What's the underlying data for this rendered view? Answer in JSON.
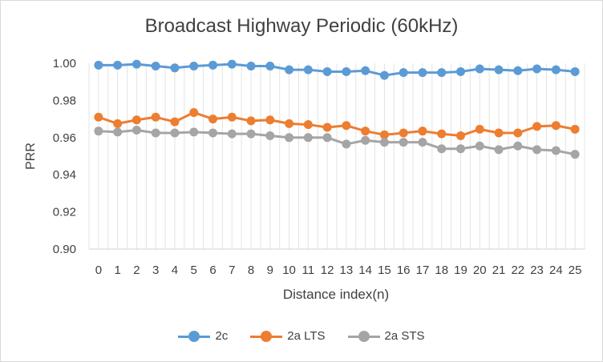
{
  "chart_data": {
    "type": "line",
    "title": "Broadcast Highway Periodic (60kHz)",
    "xlabel": "Distance index(n)",
    "ylabel": "PRR",
    "x": [
      0,
      1,
      2,
      3,
      4,
      5,
      6,
      7,
      8,
      9,
      10,
      11,
      12,
      13,
      14,
      15,
      16,
      17,
      18,
      19,
      20,
      21,
      22,
      23,
      24,
      25
    ],
    "ylim": [
      0.9,
      1.0
    ],
    "yticks": [
      "0.90",
      "0.92",
      "0.94",
      "0.96",
      "0.98",
      "1.00"
    ],
    "grid": "vertical-minor",
    "legend": "bottom",
    "series": [
      {
        "name": "2c",
        "color": "#5b9bd5",
        "values": [
          0.999,
          0.999,
          0.9995,
          0.9985,
          0.9975,
          0.9985,
          0.999,
          0.9995,
          0.9985,
          0.9985,
          0.9965,
          0.9965,
          0.9955,
          0.9955,
          0.996,
          0.9935,
          0.995,
          0.995,
          0.995,
          0.9955,
          0.997,
          0.9965,
          0.996,
          0.997,
          0.9965,
          0.9955
        ]
      },
      {
        "name": "2a LTS",
        "color": "#ed7d31",
        "values": [
          0.971,
          0.9675,
          0.9695,
          0.971,
          0.9685,
          0.9735,
          0.97,
          0.971,
          0.969,
          0.9695,
          0.9675,
          0.967,
          0.9655,
          0.9665,
          0.9635,
          0.9615,
          0.9625,
          0.9635,
          0.962,
          0.961,
          0.9645,
          0.9625,
          0.9625,
          0.966,
          0.9665,
          0.9645
        ]
      },
      {
        "name": "2a STS",
        "color": "#a5a5a5",
        "values": [
          0.9635,
          0.963,
          0.964,
          0.9625,
          0.9625,
          0.963,
          0.9625,
          0.962,
          0.962,
          0.961,
          0.96,
          0.96,
          0.96,
          0.9565,
          0.9585,
          0.9575,
          0.9575,
          0.9575,
          0.954,
          0.954,
          0.9555,
          0.9535,
          0.9555,
          0.9535,
          0.953,
          0.951
        ]
      }
    ]
  }
}
